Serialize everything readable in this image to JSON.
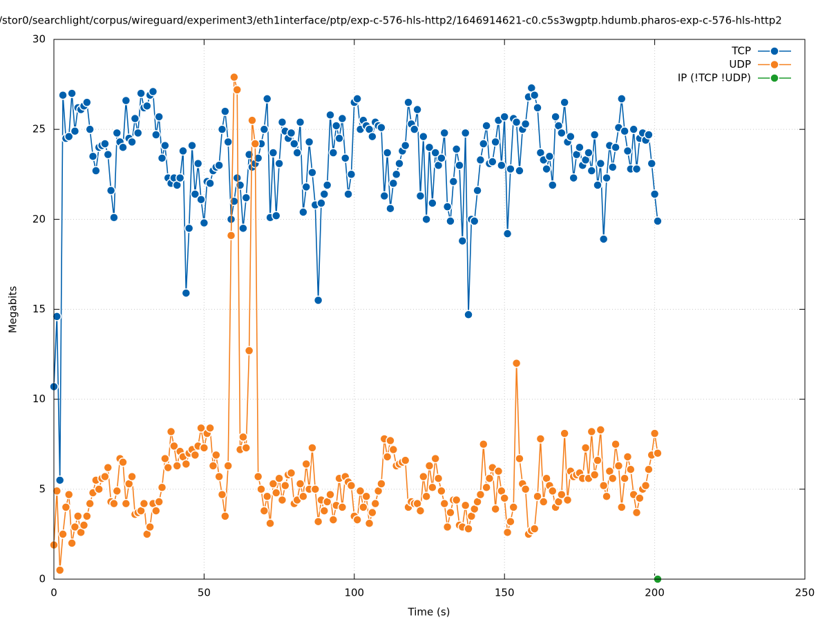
{
  "chart_data": {
    "type": "line",
    "title": "/stor0/searchlight/corpus/wireguard/experiment3/eth1interface/ptp/exp-c-576-hls-http2/1646914621-c0.c5s3wgptp.hdumb.pharos-exp-c-576-hls-http2",
    "x_label": "Time (s)",
    "y_label": "Megabits",
    "xlim": [
      0,
      250
    ],
    "xticks": [
      0,
      50,
      100,
      150,
      200,
      250
    ],
    "ylim": [
      0,
      30
    ],
    "yticks": [
      0,
      5,
      10,
      15,
      20,
      25,
      30
    ],
    "grid": true,
    "legend": "top-right",
    "x": [
      0,
      1,
      2,
      3,
      4,
      5,
      6,
      7,
      8,
      9,
      10,
      11,
      12,
      13,
      14,
      15,
      16,
      17,
      18,
      19,
      20,
      21,
      22,
      23,
      24,
      25,
      26,
      27,
      28,
      29,
      30,
      31,
      32,
      33,
      34,
      35,
      36,
      37,
      38,
      39,
      40,
      41,
      42,
      43,
      44,
      45,
      46,
      47,
      48,
      49,
      50,
      51,
      52,
      53,
      54,
      55,
      56,
      57,
      58,
      59,
      60,
      61,
      62,
      63,
      64,
      65,
      66,
      67,
      68,
      69,
      70,
      71,
      72,
      73,
      74,
      75,
      76,
      77,
      78,
      79,
      80,
      81,
      82,
      83,
      84,
      85,
      86,
      87,
      88,
      89,
      90,
      91,
      92,
      93,
      94,
      95,
      96,
      97,
      98,
      99,
      100,
      101,
      102,
      103,
      104,
      105,
      106,
      107,
      108,
      109,
      110,
      111,
      112,
      113,
      114,
      115,
      116,
      117,
      118,
      119,
      120,
      121,
      122,
      123,
      124,
      125,
      126,
      127,
      128,
      129,
      130,
      131,
      132,
      133,
      134,
      135,
      136,
      137,
      138,
      139,
      140,
      141,
      142,
      143,
      144,
      145,
      146,
      147,
      148,
      149,
      150,
      151,
      152,
      153,
      154,
      155,
      156,
      157,
      158,
      159,
      160,
      161,
      162,
      163,
      164,
      165,
      166,
      167,
      168,
      169,
      170,
      171,
      172,
      173,
      174,
      175,
      176,
      177,
      178,
      179,
      180,
      181,
      182,
      183,
      184,
      185,
      186,
      187,
      188,
      189,
      190,
      191,
      192,
      193,
      194,
      195,
      196,
      197,
      198,
      199,
      200,
      201
    ],
    "series": [
      {
        "name": "TCP",
        "color": "#0060ad",
        "values": [
          10.7,
          14.6,
          5.5,
          26.9,
          24.5,
          24.6,
          27.0,
          24.9,
          26.2,
          26.1,
          26.3,
          26.5,
          25.0,
          23.5,
          22.7,
          24.0,
          24.1,
          24.2,
          23.6,
          21.6,
          20.1,
          24.8,
          24.3,
          24.0,
          26.6,
          24.5,
          24.3,
          25.6,
          24.8,
          27.0,
          26.2,
          26.3,
          26.9,
          27.1,
          24.7,
          25.7,
          23.4,
          24.1,
          22.3,
          22.0,
          22.3,
          21.9,
          22.3,
          23.8,
          15.9,
          19.5,
          24.1,
          21.4,
          23.1,
          21.1,
          19.8,
          22.1,
          22.0,
          22.7,
          22.9,
          23.0,
          25.0,
          26.0,
          24.3,
          20.0,
          21.0,
          22.3,
          21.9,
          19.5,
          21.2,
          23.6,
          22.9,
          23.1,
          23.4,
          24.2,
          25.0,
          26.7,
          20.1,
          23.7,
          20.2,
          23.1,
          25.4,
          24.9,
          24.5,
          24.8,
          24.2,
          23.7,
          25.4,
          20.4,
          21.8,
          24.3,
          22.6,
          20.8,
          15.5,
          20.9,
          21.4,
          21.9,
          25.8,
          23.7,
          25.2,
          24.5,
          25.6,
          23.4,
          21.4,
          22.5,
          26.5,
          26.7,
          25.0,
          25.5,
          25.2,
          25.0,
          24.6,
          25.4,
          25.2,
          25.1,
          21.3,
          23.7,
          20.6,
          22.0,
          22.5,
          23.1,
          23.8,
          24.1,
          26.5,
          25.3,
          25.0,
          26.1,
          21.3,
          24.6,
          20.0,
          24.0,
          20.9,
          23.7,
          23.0,
          23.4,
          24.8,
          20.7,
          19.9,
          22.1,
          23.9,
          23.0,
          18.8,
          24.8,
          14.7,
          20.0,
          19.9,
          21.6,
          23.3,
          24.2,
          25.2,
          23.1,
          23.2,
          24.3,
          25.5,
          23.0,
          25.7,
          19.2,
          22.8,
          25.6,
          25.4,
          22.7,
          25.0,
          25.3,
          26.8,
          27.3,
          26.9,
          26.2,
          23.7,
          23.3,
          22.8,
          23.5,
          21.9,
          25.7,
          25.2,
          24.8,
          26.5,
          24.3,
          24.6,
          22.3,
          23.6,
          24.0,
          23.0,
          23.3,
          23.7,
          22.7,
          24.7,
          21.9,
          23.1,
          18.9,
          22.3,
          24.1,
          22.9,
          24.0,
          25.1,
          26.7,
          24.9,
          23.8,
          22.8,
          25.0,
          22.8,
          24.5,
          24.8,
          24.4,
          24.7,
          23.1,
          21.4,
          19.9
        ]
      },
      {
        "name": "UDP",
        "color": "#f5801e",
        "values": [
          1.9,
          4.9,
          0.5,
          2.5,
          4.0,
          4.7,
          2.0,
          2.9,
          3.5,
          2.6,
          3.0,
          3.5,
          4.2,
          4.8,
          5.5,
          5.0,
          5.6,
          5.7,
          6.2,
          4.3,
          4.2,
          4.9,
          6.7,
          6.5,
          4.2,
          5.3,
          5.7,
          3.6,
          3.7,
          3.8,
          4.2,
          2.5,
          2.9,
          4.2,
          3.8,
          4.3,
          5.1,
          6.7,
          6.2,
          8.2,
          7.4,
          6.3,
          7.1,
          6.8,
          6.4,
          7.0,
          7.2,
          6.9,
          7.4,
          8.4,
          7.3,
          8.1,
          8.4,
          6.3,
          6.9,
          5.7,
          4.7,
          3.5,
          6.3,
          19.1,
          27.9,
          27.2,
          7.2,
          7.9,
          7.3,
          12.7,
          25.5,
          24.2,
          5.7,
          5.0,
          3.8,
          4.6,
          3.1,
          5.3,
          4.8,
          5.6,
          4.4,
          5.2,
          5.8,
          5.9,
          4.2,
          4.4,
          5.3,
          4.6,
          6.4,
          5.0,
          7.3,
          5.0,
          3.2,
          4.4,
          3.8,
          4.3,
          4.7,
          3.3,
          4.1,
          5.6,
          4.0,
          5.7,
          5.4,
          5.2,
          3.5,
          3.3,
          4.9,
          4.0,
          4.6,
          3.1,
          3.7,
          4.2,
          4.9,
          5.3,
          7.8,
          6.8,
          7.7,
          7.2,
          6.3,
          6.4,
          6.5,
          6.6,
          4.0,
          4.3,
          4.2,
          4.2,
          3.8,
          5.7,
          4.6,
          6.3,
          5.1,
          6.7,
          5.6,
          4.9,
          4.2,
          2.9,
          3.7,
          4.4,
          4.4,
          3.0,
          2.9,
          4.1,
          2.8,
          3.5,
          3.9,
          4.3,
          4.7,
          7.5,
          5.1,
          5.6,
          6.2,
          3.9,
          6.0,
          4.9,
          4.5,
          2.6,
          3.2,
          4.0,
          12.0,
          6.7,
          5.3,
          5.0,
          2.5,
          2.7,
          2.8,
          4.6,
          7.8,
          4.3,
          5.6,
          5.2,
          4.9,
          4.0,
          4.3,
          4.7,
          8.1,
          4.4,
          6.0,
          5.7,
          5.8,
          5.9,
          5.6,
          7.3,
          5.6,
          8.2,
          5.8,
          6.6,
          8.3,
          5.2,
          4.6,
          6.0,
          5.6,
          7.5,
          6.3,
          4.0,
          5.6,
          6.8,
          6.1,
          4.7,
          3.7,
          4.5,
          5.0,
          5.2,
          6.1,
          6.9,
          8.1,
          7.0
        ]
      },
      {
        "name": "IP (!TCP  !UDP)",
        "color": "#1a9a2a",
        "x": [
          201
        ],
        "values": [
          0
        ]
      }
    ]
  }
}
